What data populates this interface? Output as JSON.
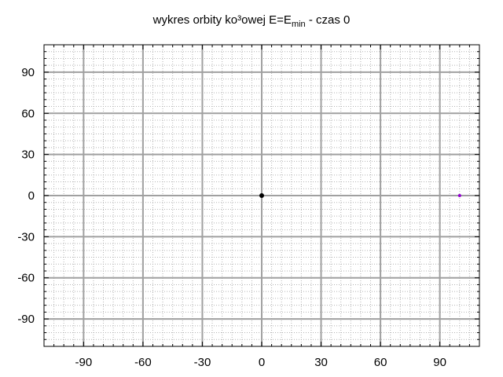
{
  "chart_data": {
    "type": "scatter",
    "title": {
      "prefix": "wykres orbity ko³owej E=E",
      "subscript": "min",
      "suffix": " - czas 0"
    },
    "xlim": [
      -110,
      110
    ],
    "ylim": [
      -110,
      110
    ],
    "major_ticks": [
      -90,
      -60,
      -30,
      0,
      30,
      60,
      90
    ],
    "tick_labels": [
      "-90",
      "-60",
      "-30",
      "0",
      "30",
      "60",
      "90"
    ],
    "minor_tick_step": 5,
    "grid": "major and minor",
    "series": [
      {
        "x": [
          0
        ],
        "y": [
          0
        ],
        "color": "#000000"
      },
      {
        "x": [
          100
        ],
        "y": [
          0
        ],
        "color": "#9400d3"
      }
    ]
  }
}
